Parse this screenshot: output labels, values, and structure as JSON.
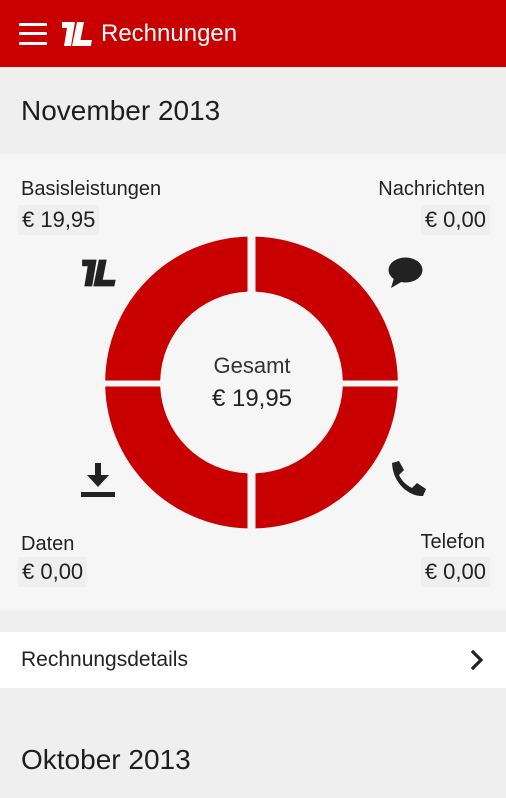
{
  "appbar": {
    "title": "Rechnungen"
  },
  "november": {
    "month_title": "November 2013",
    "basis": {
      "label": "Basisleistungen",
      "value": "€ 19,95"
    },
    "nachrichten": {
      "label": "Nachrichten",
      "value": "€ 0,00"
    },
    "daten": {
      "label": "Daten",
      "value": "€ 0,00"
    },
    "telefon": {
      "label": "Telefon",
      "value": "€ 0,00"
    },
    "center": {
      "label": "Gesamt",
      "value": "€ 19,95"
    },
    "icons": {
      "basis": "brand-logo-icon",
      "nachrichten": "speech-bubble-icon",
      "daten": "download-icon",
      "telefon": "phone-icon"
    },
    "details_label": "Rechnungsdetails"
  },
  "oktober": {
    "month_title": "Oktober 2013"
  },
  "colors": {
    "accent": "#c90000",
    "background": "#efefef",
    "card": "#f7f6f7"
  }
}
